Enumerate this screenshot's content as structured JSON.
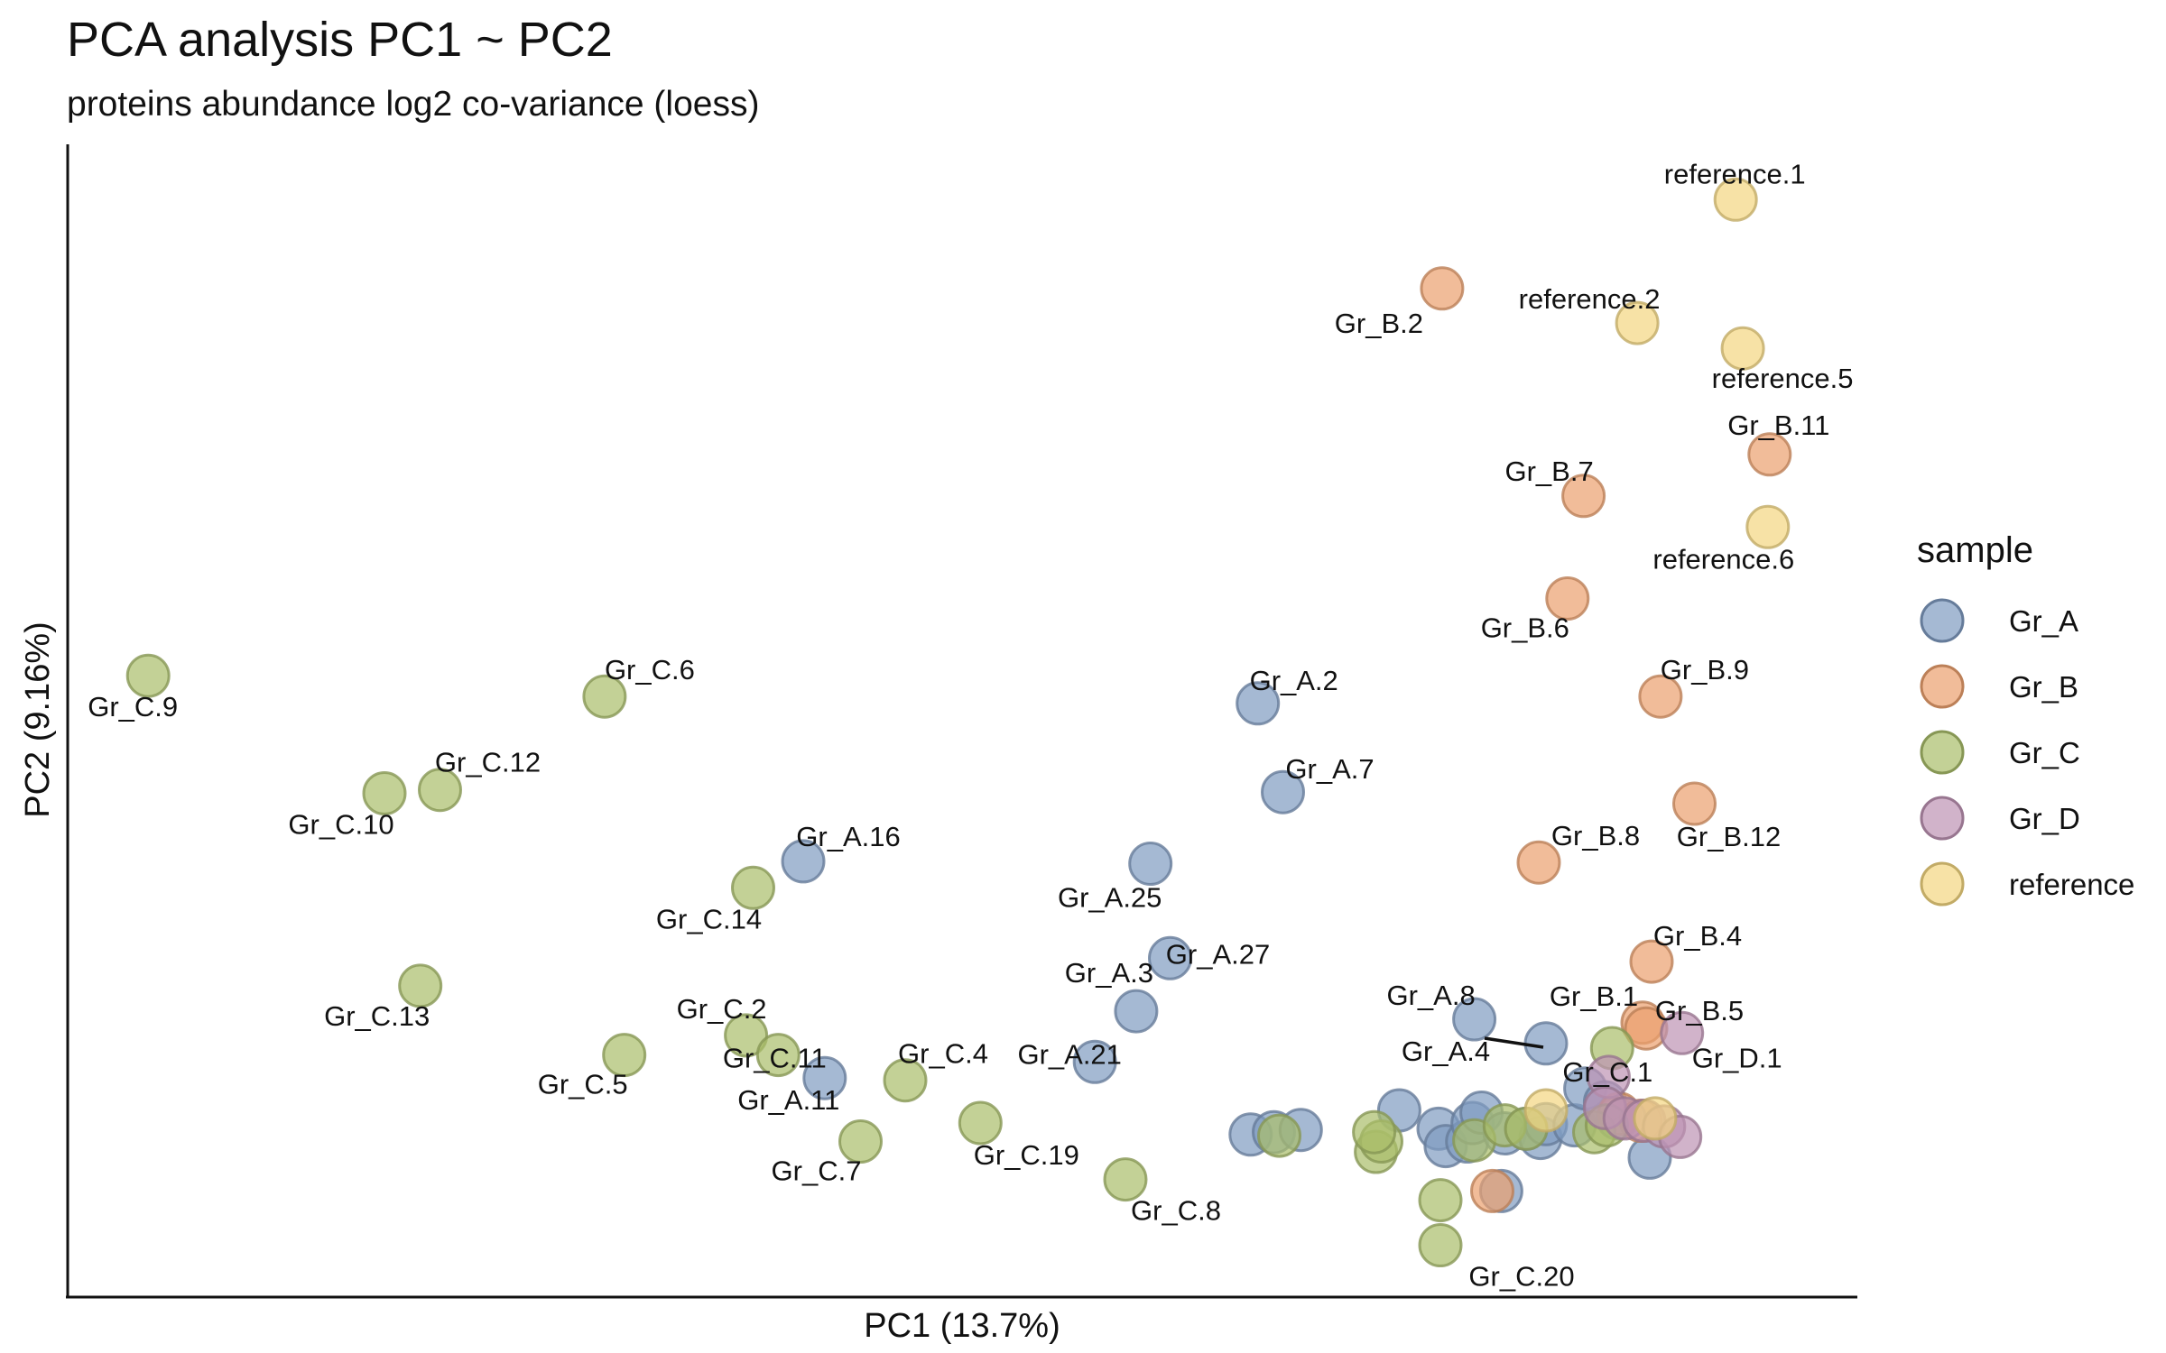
{
  "chart_data": {
    "type": "scatter",
    "title": "PCA analysis PC1 ~ PC2",
    "subtitle": "proteins abundance log2 co-variance (loess)",
    "xlabel": "PC1 (13.7%)",
    "ylabel": "PC2 (9.16%)",
    "xlim": [
      0,
      100
    ],
    "ylim": [
      0,
      100
    ],
    "x_ticks": "none",
    "y_ticks": "none",
    "grid": false,
    "legend": {
      "title": "sample",
      "position": "right",
      "entries": [
        {
          "name": "Gr_A",
          "color": "#7F9BC0"
        },
        {
          "name": "Gr_B",
          "color": "#EBA06E"
        },
        {
          "name": "Gr_C",
          "color": "#A9BD6A"
        },
        {
          "name": "Gr_D",
          "color": "#BE93B4"
        },
        {
          "name": "reference",
          "color": "#F3D680"
        }
      ]
    },
    "series": [
      {
        "name": "Gr_A",
        "points": [
          {
            "label": "Gr_A.2",
            "x": 66.5,
            "y": 51.5
          },
          {
            "label": "Gr_A.7",
            "x": 67.9,
            "y": 43.8
          },
          {
            "label": "Gr_A.25",
            "x": 60.5,
            "y": 37.6
          },
          {
            "label": "Gr_A.16",
            "x": 41.1,
            "y": 37.8
          },
          {
            "label": "Gr_A.27",
            "x": 61.6,
            "y": 29.4
          },
          {
            "label": "Gr_A.3",
            "x": 59.7,
            "y": 24.8
          },
          {
            "label": "Gr_A.21",
            "x": 57.4,
            "y": 20.4
          },
          {
            "label": "Gr_A.11",
            "x": 42.3,
            "y": 19.0
          },
          {
            "label": "Gr_A.8",
            "x": 78.6,
            "y": 24.1
          },
          {
            "label": "Gr_A.4",
            "x": 82.6,
            "y": 22.0
          },
          {
            "label": "",
            "x": 66.1,
            "y": 14.1
          },
          {
            "label": "",
            "x": 67.4,
            "y": 14.3
          },
          {
            "label": "",
            "x": 68.9,
            "y": 14.5
          },
          {
            "label": "",
            "x": 74.4,
            "y": 16.2
          },
          {
            "label": "",
            "x": 76.6,
            "y": 14.6
          },
          {
            "label": "",
            "x": 77.0,
            "y": 13.1
          },
          {
            "label": "",
            "x": 78.2,
            "y": 13.5
          },
          {
            "label": "",
            "x": 78.5,
            "y": 15.1
          },
          {
            "label": "",
            "x": 79.0,
            "y": 16.0
          },
          {
            "label": "",
            "x": 80.3,
            "y": 14.2
          },
          {
            "label": "",
            "x": 81.5,
            "y": 14.6
          },
          {
            "label": "",
            "x": 82.3,
            "y": 13.8
          },
          {
            "label": "",
            "x": 82.6,
            "y": 15.0
          },
          {
            "label": "",
            "x": 84.2,
            "y": 14.9
          },
          {
            "label": "",
            "x": 84.8,
            "y": 18.1
          },
          {
            "label": "",
            "x": 85.9,
            "y": 16.9
          },
          {
            "label": "",
            "x": 86.6,
            "y": 15.5
          },
          {
            "label": "",
            "x": 88.4,
            "y": 12.1
          },
          {
            "label": "",
            "x": 80.1,
            "y": 9.2
          }
        ]
      },
      {
        "name": "Gr_B",
        "points": [
          {
            "label": "Gr_B.2",
            "x": 76.8,
            "y": 87.5
          },
          {
            "label": "Gr_B.11",
            "x": 95.1,
            "y": 73.1
          },
          {
            "label": "Gr_B.7",
            "x": 84.7,
            "y": 69.5
          },
          {
            "label": "Gr_B.6",
            "x": 83.8,
            "y": 60.6
          },
          {
            "label": "Gr_B.9",
            "x": 89.0,
            "y": 52.1
          },
          {
            "label": "Gr_B.12",
            "x": 90.9,
            "y": 42.8
          },
          {
            "label": "Gr_B.8",
            "x": 82.2,
            "y": 37.7
          },
          {
            "label": "Gr_B.4",
            "x": 88.5,
            "y": 29.1
          },
          {
            "label": "Gr_B.1",
            "x": 88.0,
            "y": 23.8
          },
          {
            "label": "Gr_B.5",
            "x": 88.2,
            "y": 23.3
          },
          {
            "label": "",
            "x": 79.6,
            "y": 9.2
          },
          {
            "label": "",
            "x": 86.7,
            "y": 15.9
          },
          {
            "label": "",
            "x": 87.9,
            "y": 15.3
          }
        ]
      },
      {
        "name": "Gr_C",
        "points": [
          {
            "label": "Gr_C.9",
            "x": 4.5,
            "y": 53.9
          },
          {
            "label": "Gr_C.6",
            "x": 30.0,
            "y": 52.1
          },
          {
            "label": "Gr_C.12",
            "x": 20.8,
            "y": 44.0
          },
          {
            "label": "Gr_C.10",
            "x": 17.7,
            "y": 43.7
          },
          {
            "label": "Gr_C.14",
            "x": 38.3,
            "y": 35.5
          },
          {
            "label": "Gr_C.13",
            "x": 19.7,
            "y": 27.0
          },
          {
            "label": "Gr_C.2",
            "x": 37.9,
            "y": 22.7
          },
          {
            "label": "Gr_C.11",
            "x": 39.7,
            "y": 21.0
          },
          {
            "label": "Gr_C.5",
            "x": 31.1,
            "y": 21.0
          },
          {
            "label": "Gr_C.4",
            "x": 46.8,
            "y": 18.8
          },
          {
            "label": "Gr_C.19",
            "x": 51.0,
            "y": 15.1
          },
          {
            "label": "Gr_C.7",
            "x": 44.3,
            "y": 13.5
          },
          {
            "label": "Gr_C.8",
            "x": 59.1,
            "y": 10.2
          },
          {
            "label": "Gr_C.1",
            "x": 86.3,
            "y": 21.6
          },
          {
            "label": "Gr_C.20",
            "x": 76.7,
            "y": 4.5
          },
          {
            "label": "",
            "x": 67.7,
            "y": 14.0
          },
          {
            "label": "",
            "x": 73.1,
            "y": 12.6
          },
          {
            "label": "",
            "x": 73.4,
            "y": 13.5
          },
          {
            "label": "",
            "x": 73.0,
            "y": 14.3
          },
          {
            "label": "",
            "x": 76.7,
            "y": 8.4
          },
          {
            "label": "",
            "x": 78.6,
            "y": 13.6
          },
          {
            "label": "",
            "x": 80.3,
            "y": 14.9
          },
          {
            "label": "",
            "x": 81.5,
            "y": 14.6
          },
          {
            "label": "",
            "x": 85.3,
            "y": 14.3
          },
          {
            "label": "",
            "x": 86.0,
            "y": 14.9
          }
        ]
      },
      {
        "name": "Gr_D",
        "points": [
          {
            "label": "Gr_D.1",
            "x": 90.2,
            "y": 22.9
          },
          {
            "label": "",
            "x": 86.1,
            "y": 19.1
          },
          {
            "label": "",
            "x": 85.9,
            "y": 16.4
          },
          {
            "label": "",
            "x": 87.0,
            "y": 15.5
          },
          {
            "label": "",
            "x": 88.1,
            "y": 15.3
          },
          {
            "label": "",
            "x": 89.2,
            "y": 14.8
          },
          {
            "label": "",
            "x": 90.1,
            "y": 13.9
          }
        ]
      },
      {
        "name": "reference",
        "points": [
          {
            "label": "reference.1",
            "x": 93.2,
            "y": 95.2
          },
          {
            "label": "reference.2",
            "x": 87.7,
            "y": 84.5
          },
          {
            "label": "reference.5",
            "x": 93.6,
            "y": 82.3
          },
          {
            "label": "reference.6",
            "x": 95.0,
            "y": 66.8
          },
          {
            "label": "",
            "x": 82.6,
            "y": 16.2
          },
          {
            "label": "",
            "x": 88.7,
            "y": 15.5
          }
        ]
      }
    ]
  }
}
